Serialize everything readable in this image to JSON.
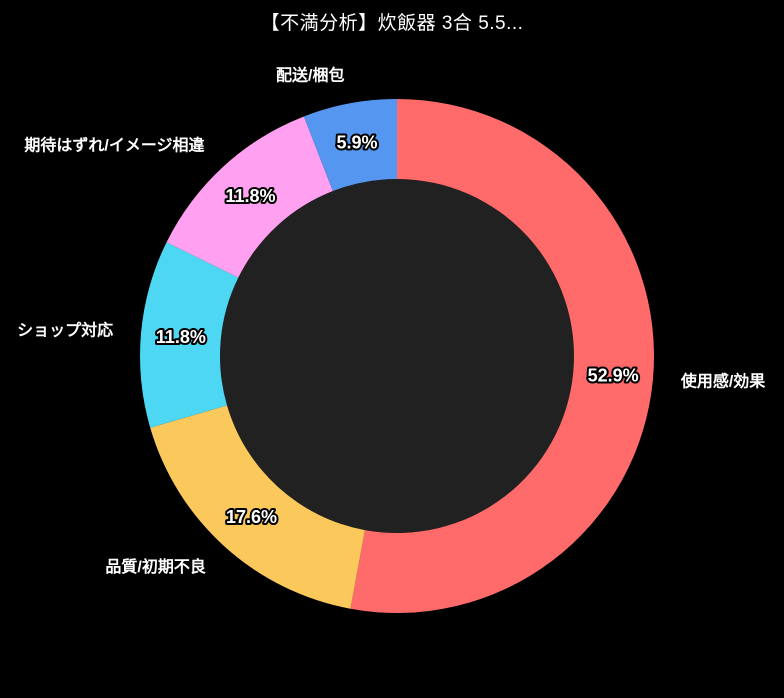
{
  "page": {
    "background_color": "#000000"
  },
  "header": {
    "title": "【不満分析】炊飯器 3合 5.5..."
  },
  "chart_data": {
    "type": "pie",
    "variant": "donut",
    "title": "【不満分析】炊飯器 3合 5.5...",
    "unit": "%",
    "direction": "clockwise",
    "start_angle": "12-oclock",
    "legend_position": "outside-labels",
    "categories": [
      "使用感/効果",
      "品質/初期不良",
      "ショップ対応",
      "期待はずれ/イメージ相違",
      "配送/梱包"
    ],
    "values": [
      52.9,
      17.6,
      11.8,
      11.8,
      5.9
    ],
    "value_labels": [
      "52.9%",
      "17.6%",
      "11.8%",
      "11.8%",
      "5.9%"
    ],
    "colors": [
      "#FF6B6B",
      "#FBC85C",
      "#4DD7F2",
      "#FFA1F0",
      "#5596F0"
    ],
    "hole_color": "#212121",
    "value_label_text_color": "#ffffff",
    "value_label_outline_color": "#000000",
    "category_label_color": "#ffffff"
  }
}
